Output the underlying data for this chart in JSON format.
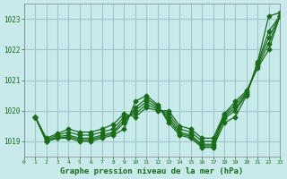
{
  "background_color": "#c8eaea",
  "grid_color": "#a0c8c8",
  "line_color": "#1a6b1a",
  "title": "Graphe pression niveau de la mer (hPa)",
  "xlim": [
    0,
    23
  ],
  "ylim": [
    1018.5,
    1023.5
  ],
  "yticks": [
    1019,
    1020,
    1021,
    1022,
    1023
  ],
  "xticks": [
    0,
    1,
    2,
    3,
    4,
    5,
    6,
    7,
    8,
    9,
    10,
    11,
    12,
    13,
    14,
    15,
    16,
    17,
    18,
    19,
    20,
    21,
    22,
    23
  ],
  "series": [
    [
      1019.8,
      1019.0,
      1019.1,
      1019.1,
      1019.0,
      1019.0,
      1019.1,
      1019.2,
      1019.4,
      1020.3,
      1020.5,
      1020.2,
      1019.6,
      1019.2,
      1019.1,
      1018.8,
      1018.8,
      1019.6,
      1019.8,
      1020.5,
      1021.6,
      1023.1,
      1023.2
    ],
    [
      1019.8,
      1019.0,
      1019.1,
      1019.15,
      1019.05,
      1019.05,
      1019.15,
      1019.25,
      1019.6,
      1020.1,
      1020.4,
      1020.15,
      1019.7,
      1019.25,
      1019.15,
      1018.85,
      1018.85,
      1019.75,
      1020.0,
      1020.55,
      1021.55,
      1022.6,
      1023.1
    ],
    [
      1019.8,
      1019.0,
      1019.15,
      1019.2,
      1019.1,
      1019.1,
      1019.2,
      1019.3,
      1019.7,
      1020.0,
      1020.3,
      1020.1,
      1019.8,
      1019.3,
      1019.2,
      1018.9,
      1018.9,
      1019.8,
      1020.1,
      1020.55,
      1021.5,
      1022.4,
      1023.1
    ],
    [
      1019.8,
      1019.05,
      1019.2,
      1019.3,
      1019.2,
      1019.2,
      1019.3,
      1019.4,
      1019.8,
      1019.9,
      1020.2,
      1020.05,
      1019.9,
      1019.4,
      1019.3,
      1019.0,
      1019.0,
      1019.85,
      1020.2,
      1020.6,
      1021.45,
      1022.2,
      1023.1
    ],
    [
      1019.8,
      1019.1,
      1019.25,
      1019.4,
      1019.3,
      1019.3,
      1019.4,
      1019.55,
      1019.9,
      1019.8,
      1020.1,
      1020.0,
      1020.0,
      1019.5,
      1019.4,
      1019.1,
      1019.1,
      1019.9,
      1020.3,
      1020.65,
      1021.4,
      1022.0,
      1023.1
    ]
  ]
}
